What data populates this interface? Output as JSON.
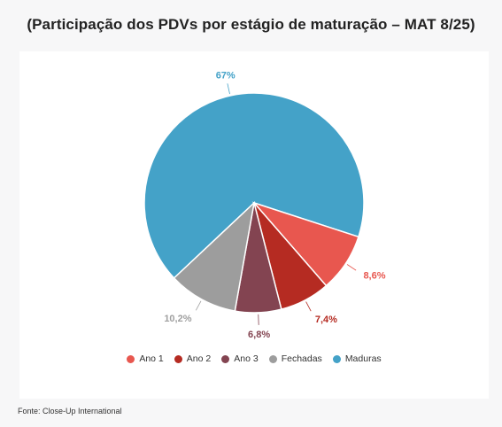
{
  "title": "(Participação dos PDVs por estágio de maturação – MAT 8/25)",
  "source": "Fonte: Close-Up International",
  "chart_data": {
    "type": "pie",
    "slices": [
      {
        "name": "Maduras",
        "value": 67,
        "label": "67%",
        "color": "#44a2c8"
      },
      {
        "name": "Ano 1",
        "value": 8.6,
        "label": "8,6%",
        "color": "#e8574f"
      },
      {
        "name": "Ano 2",
        "value": 7.4,
        "label": "7,4%",
        "color": "#b52b22"
      },
      {
        "name": "Ano 3",
        "value": 6.8,
        "label": "6,8%",
        "color": "#834451"
      },
      {
        "name": "Fechadas",
        "value": 10.2,
        "label": "10,2%",
        "color": "#9d9d9d"
      }
    ],
    "label_colors": {
      "Maduras": "#44a2c8",
      "Ano 1": "#e8574f",
      "Ano 2": "#b52b22",
      "Ano 3": "#834451",
      "Fechadas": "#a0a0a0"
    },
    "legend": [
      {
        "name": "Ano 1",
        "color": "#e8574f"
      },
      {
        "name": "Ano 2",
        "color": "#b52b22"
      },
      {
        "name": "Ano 3",
        "color": "#834451"
      },
      {
        "name": "Fechadas",
        "color": "#9d9d9d"
      },
      {
        "name": "Maduras",
        "color": "#44a2c8"
      }
    ],
    "legend_placement": "bottom"
  }
}
